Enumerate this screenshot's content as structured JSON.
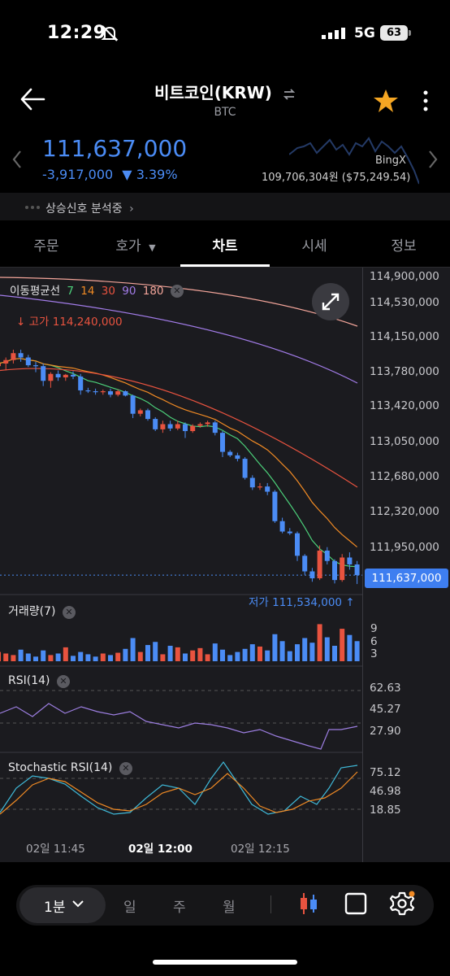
{
  "status": {
    "time": "12:29",
    "network": "5G",
    "battery": "63"
  },
  "header": {
    "title": "비트코인(KRW)",
    "symbol": "BTC"
  },
  "quote": {
    "price": "111,637,000",
    "change": "-3,917,000",
    "change_pct": "▼ 3.39%",
    "ref_exchange": "BingX",
    "ref_price": "109,706,304원 ($75,249.54)"
  },
  "signal_text": "상승신호 분석중",
  "tabs": [
    "주문",
    "호가",
    "차트",
    "시세",
    "정보"
  ],
  "active_tab": "차트",
  "ma_legend": {
    "title": "이동평균선",
    "periods": [
      {
        "label": "7",
        "color": "#4cd07a"
      },
      {
        "label": "14",
        "color": "#f08a24"
      },
      {
        "label": "30",
        "color": "#e8533f"
      },
      {
        "label": "90",
        "color": "#a27ce8"
      },
      {
        "label": "180",
        "color": "#f3a59a"
      }
    ]
  },
  "high_label": "고가 114,240,000",
  "low_label": "저가 111,534,000",
  "current_price_tag": "111,637,000",
  "price_axis": [
    "114,900,000",
    "114,530,000",
    "114,150,000",
    "113,780,000",
    "113,420,000",
    "113,050,000",
    "112,680,000",
    "112,320,000",
    "111,950,000"
  ],
  "volume": {
    "label": "거래량(7)",
    "axis": [
      "9",
      "6",
      "3"
    ]
  },
  "rsi": {
    "label": "RSI(14)",
    "axis": [
      "62.63",
      "45.27",
      "27.90"
    ]
  },
  "stoch": {
    "label": "Stochastic RSI(14)",
    "axis": [
      "75.12",
      "46.98",
      "18.85"
    ]
  },
  "time_axis": [
    "02일 11:45",
    "02일 12:00",
    "02일 12:15"
  ],
  "bottom_bar": {
    "interval": "1분",
    "options": [
      "일",
      "주",
      "월"
    ]
  },
  "colors": {
    "up": "#e8533f",
    "down": "#4b8cf5",
    "accent": "#3e7ef0",
    "star": "#f5a623"
  },
  "chart_data": {
    "type": "candlestick",
    "ylim": [
      111450000,
      115000000
    ],
    "candles": [
      [
        114050000,
        114120000,
        113980000,
        114080000
      ],
      [
        114080000,
        114150000,
        114000000,
        114120000
      ],
      [
        114120000,
        114240000,
        114080000,
        114200000
      ],
      [
        114200000,
        114240000,
        114100000,
        114150000
      ],
      [
        114150000,
        114180000,
        114040000,
        114060000
      ],
      [
        114060000,
        114100000,
        113980000,
        114050000
      ],
      [
        114050000,
        114080000,
        113820000,
        113880000
      ],
      [
        113880000,
        113980000,
        113800000,
        113960000
      ],
      [
        113960000,
        114000000,
        113880000,
        113920000
      ],
      [
        113920000,
        113960000,
        113880000,
        113950000
      ],
      [
        113950000,
        113990000,
        113900000,
        113930000
      ],
      [
        113930000,
        113960000,
        113720000,
        113770000
      ],
      [
        113770000,
        113800000,
        113740000,
        113760000
      ],
      [
        113760000,
        113790000,
        113720000,
        113750000
      ],
      [
        113750000,
        113780000,
        113720000,
        113760000
      ],
      [
        113760000,
        113790000,
        113690000,
        113720000
      ],
      [
        113720000,
        113780000,
        113700000,
        113760000
      ],
      [
        113760000,
        113770000,
        113700000,
        113710000
      ],
      [
        113710000,
        113720000,
        113450000,
        113500000
      ],
      [
        113500000,
        113560000,
        113470000,
        113540000
      ],
      [
        113540000,
        113560000,
        113420000,
        113440000
      ],
      [
        113440000,
        113460000,
        113300000,
        113320000
      ],
      [
        113320000,
        113420000,
        113280000,
        113380000
      ],
      [
        113380000,
        113420000,
        113300000,
        113330000
      ],
      [
        113330000,
        113420000,
        113310000,
        113380000
      ],
      [
        113380000,
        113400000,
        113220000,
        113300000
      ],
      [
        113300000,
        113380000,
        113280000,
        113360000
      ],
      [
        113360000,
        113400000,
        113340000,
        113380000
      ],
      [
        113380000,
        113420000,
        113350000,
        113400000
      ],
      [
        113400000,
        113420000,
        113250000,
        113280000
      ],
      [
        113280000,
        113300000,
        113000000,
        113060000
      ],
      [
        113060000,
        113080000,
        113000000,
        113020000
      ],
      [
        113020000,
        113050000,
        112950000,
        112980000
      ],
      [
        112980000,
        113000000,
        112740000,
        112760000
      ],
      [
        112760000,
        112790000,
        112620000,
        112650000
      ],
      [
        112650000,
        112700000,
        112620000,
        112660000
      ],
      [
        112660000,
        112700000,
        112560000,
        112600000
      ],
      [
        112600000,
        112620000,
        112240000,
        112260000
      ],
      [
        112260000,
        112300000,
        112120000,
        112140000
      ],
      [
        112140000,
        112180000,
        112100000,
        112120000
      ],
      [
        112120000,
        112140000,
        111800000,
        111860000
      ],
      [
        111860000,
        111880000,
        111640000,
        111680000
      ],
      [
        111680000,
        111720000,
        111560000,
        111600000
      ],
      [
        111600000,
        111980000,
        111580000,
        111920000
      ],
      [
        111920000,
        111960000,
        111760000,
        111800000
      ],
      [
        111800000,
        111820000,
        111540000,
        111580000
      ],
      [
        111580000,
        111880000,
        111560000,
        111840000
      ],
      [
        111840000,
        111900000,
        111700000,
        111760000
      ],
      [
        111760000,
        111800000,
        111534000,
        111637000
      ]
    ],
    "volume": [
      1.2,
      1.0,
      0.8,
      1.5,
      1.0,
      0.6,
      1.4,
      0.8,
      1.0,
      1.8,
      0.7,
      1.2,
      0.9,
      0.6,
      1.0,
      0.8,
      1.1,
      1.6,
      3.0,
      1.2,
      2.1,
      2.5,
      0.9,
      2.0,
      1.8,
      1.0,
      1.4,
      1.7,
      0.9,
      2.3,
      1.5,
      0.8,
      1.2,
      1.6,
      2.2,
      1.9,
      1.4,
      3.5,
      2.6,
      1.3,
      2.2,
      3.0,
      2.4,
      4.8,
      3.1,
      2.0,
      4.2,
      3.4,
      2.6
    ]
  }
}
